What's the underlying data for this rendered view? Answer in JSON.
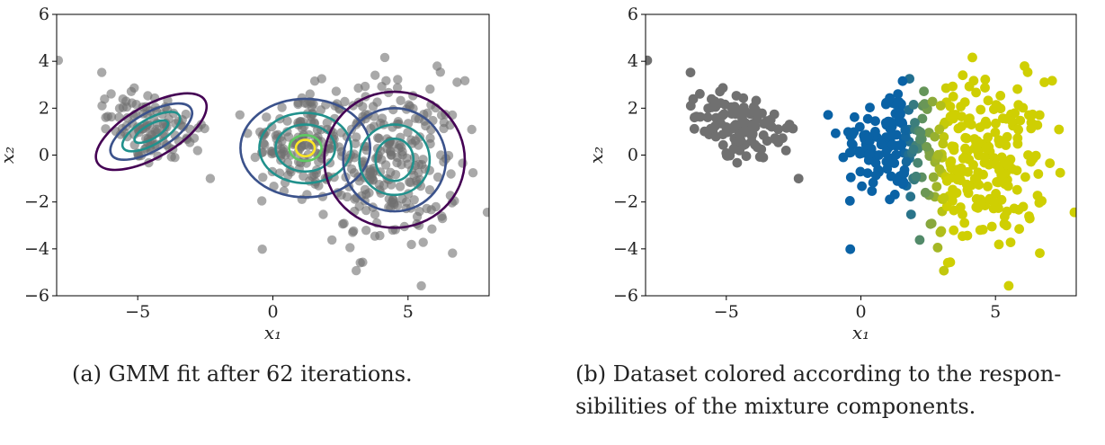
{
  "captions": {
    "a": "(a) GMM fit after 62 iterations.",
    "b_line1": "(b) Dataset colored according to the respon-",
    "b_line2": "sibilities of the mixture components."
  },
  "colors": {
    "point_gray": "#707070",
    "resp_blue": "#0a62a5",
    "resp_yellow": "#cfcf02",
    "contour_levels": [
      "#440154",
      "#3b528b",
      "#21918c",
      "#5ec962",
      "#fde725"
    ]
  },
  "chart_data": [
    {
      "type": "scatter",
      "title": "",
      "xlabel": "x₁",
      "ylabel": "x₂",
      "xlim": [
        -8,
        8
      ],
      "ylim": [
        -6,
        6
      ],
      "xticks": [
        -5,
        0,
        5
      ],
      "xtick_labels": [
        "−5",
        "0",
        "5"
      ],
      "yticks": [
        -6,
        -4,
        -2,
        0,
        2,
        4,
        6
      ],
      "ytick_labels": [
        "−6",
        "−4",
        "−2",
        "0",
        "2",
        "4",
        "6"
      ],
      "grid": false,
      "marker_color": "#707070",
      "clusters": [
        {
          "mean": [
            -4.5,
            1.2
          ],
          "std": [
            1.1,
            0.75
          ],
          "rotation_deg": -35,
          "n": 110
        },
        {
          "mean": [
            1.0,
            0.6
          ],
          "std": [
            0.9,
            1.1
          ],
          "rotation_deg": 0,
          "n": 130
        },
        {
          "mean": [
            4.3,
            -0.4
          ],
          "std": [
            1.3,
            1.8
          ],
          "rotation_deg": 0,
          "n": 260
        }
      ],
      "contours": [
        {
          "center": [
            -4.5,
            1.0
          ],
          "radii": [
            [
              2.3,
              1.1
            ],
            [
              1.7,
              0.8
            ],
            [
              1.2,
              0.55
            ],
            [
              0.7,
              0.3
            ]
          ],
          "rotation_deg": -30,
          "level_colors": [
            "#440154",
            "#3b528b",
            "#21918c",
            "#21918c"
          ]
        },
        {
          "center": [
            1.2,
            0.3
          ],
          "radii": [
            [
              2.4,
              2.1
            ],
            [
              1.7,
              1.5
            ],
            [
              1.1,
              1.0
            ],
            [
              0.6,
              0.55
            ],
            [
              0.35,
              0.35
            ]
          ],
          "rotation_deg": 0,
          "level_colors": [
            "#3b528b",
            "#21918c",
            "#21918c",
            "#5ec962",
            "#fde725"
          ]
        },
        {
          "center": [
            4.5,
            -0.2
          ],
          "radii": [
            [
              2.6,
              2.9
            ],
            [
              1.9,
              2.2
            ],
            [
              1.3,
              1.5
            ],
            [
              0.7,
              0.9
            ]
          ],
          "rotation_deg": 0,
          "level_colors": [
            "#440154",
            "#3b528b",
            "#21918c",
            "#21918c"
          ]
        }
      ]
    },
    {
      "type": "scatter",
      "title": "",
      "xlabel": "x₁",
      "ylabel": "x₂",
      "xlim": [
        -8,
        8
      ],
      "ylim": [
        -6,
        6
      ],
      "xticks": [
        -5,
        0,
        5
      ],
      "xtick_labels": [
        "−5",
        "0",
        "5"
      ],
      "yticks": [
        -6,
        -4,
        -2,
        0,
        2,
        4,
        6
      ],
      "ytick_labels": [
        "−6",
        "−4",
        "−2",
        "0",
        "2",
        "4",
        "6"
      ],
      "grid": false,
      "clusters": [
        {
          "mean": [
            -4.5,
            1.2
          ],
          "std": [
            1.1,
            0.75
          ],
          "rotation_deg": -35,
          "n": 110,
          "color": "#707070"
        },
        {
          "mean": [
            1.0,
            0.6
          ],
          "std": [
            0.9,
            1.1
          ],
          "rotation_deg": 0,
          "n": 130,
          "color": "#0a62a5"
        },
        {
          "mean": [
            4.3,
            -0.4
          ],
          "std": [
            1.3,
            1.8
          ],
          "rotation_deg": 0,
          "n": 260,
          "color": "#cfcf02"
        }
      ]
    }
  ]
}
